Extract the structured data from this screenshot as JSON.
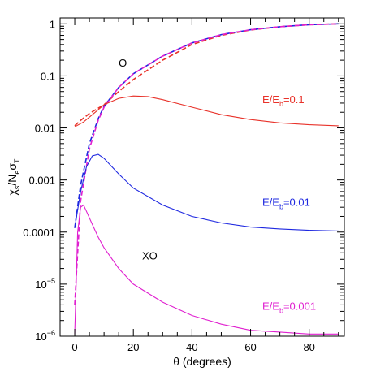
{
  "chart_data": {
    "type": "line",
    "title": "",
    "xlabel": "θ (degrees)",
    "ylabel": "χs/Neσ_T",
    "xlim": [
      -5,
      92
    ],
    "ylim": [
      1e-06,
      1.3
    ],
    "yscale": "log",
    "grid": false,
    "legend": "none",
    "x_ticks": [
      0,
      20,
      40,
      60,
      80
    ],
    "y_ticks": [
      {
        "value": 1e-06,
        "base": "10",
        "exp": "−6"
      },
      {
        "value": 1e-05,
        "base": "10",
        "exp": "−5"
      },
      {
        "value": 0.0001,
        "label": "0.0001"
      },
      {
        "value": 0.001,
        "label": "0.001"
      },
      {
        "value": 0.01,
        "label": "0.01"
      },
      {
        "value": 0.1,
        "label": "0.1"
      },
      {
        "value": 1,
        "label": "1"
      }
    ],
    "series": [
      {
        "mode": "O",
        "energy": "0.1",
        "color": "#e8322a",
        "dash": true,
        "points": [
          [
            0,
            0.011
          ],
          [
            2,
            0.014
          ],
          [
            5,
            0.019
          ],
          [
            8,
            0.024
          ],
          [
            10,
            0.028
          ],
          [
            15,
            0.05
          ],
          [
            20,
            0.085
          ],
          [
            30,
            0.2
          ],
          [
            40,
            0.4
          ],
          [
            50,
            0.6
          ],
          [
            60,
            0.76
          ],
          [
            70,
            0.88
          ],
          [
            80,
            0.96
          ],
          [
            90,
            1.0
          ]
        ]
      },
      {
        "mode": "O",
        "energy": "0.01",
        "color": "#1e28e0",
        "dash": true,
        "points": [
          [
            0,
            0.00012
          ],
          [
            2,
            0.0008
          ],
          [
            5,
            0.005
          ],
          [
            8,
            0.015
          ],
          [
            10,
            0.026
          ],
          [
            15,
            0.06
          ],
          [
            20,
            0.11
          ],
          [
            30,
            0.24
          ],
          [
            40,
            0.43
          ],
          [
            50,
            0.62
          ],
          [
            60,
            0.77
          ],
          [
            70,
            0.88
          ],
          [
            80,
            0.96
          ],
          [
            90,
            1.0
          ]
        ]
      },
      {
        "mode": "O",
        "energy": "0.001",
        "color": "#e020d0",
        "dash": true,
        "points": [
          [
            0,
            4e-06
          ],
          [
            2,
            0.0004
          ],
          [
            5,
            0.004
          ],
          [
            8,
            0.014
          ],
          [
            10,
            0.025
          ],
          [
            15,
            0.06
          ],
          [
            20,
            0.11
          ],
          [
            30,
            0.24
          ],
          [
            40,
            0.43
          ],
          [
            50,
            0.62
          ],
          [
            60,
            0.77
          ],
          [
            70,
            0.88
          ],
          [
            80,
            0.96
          ],
          [
            90,
            1.0
          ]
        ]
      },
      {
        "mode": "XO",
        "energy": "0.1",
        "color": "#e8322a",
        "dash": false,
        "points": [
          [
            0,
            0.0105
          ],
          [
            3,
            0.013
          ],
          [
            7,
            0.02
          ],
          [
            10,
            0.028
          ],
          [
            15,
            0.037
          ],
          [
            20,
            0.041
          ],
          [
            25,
            0.04
          ],
          [
            30,
            0.035
          ],
          [
            40,
            0.025
          ],
          [
            50,
            0.018
          ],
          [
            60,
            0.0145
          ],
          [
            70,
            0.0125
          ],
          [
            80,
            0.0115
          ],
          [
            90,
            0.011
          ]
        ]
      },
      {
        "mode": "XO",
        "energy": "0.01",
        "color": "#1e28e0",
        "dash": false,
        "points": [
          [
            0,
            0.00012
          ],
          [
            2,
            0.0006
          ],
          [
            4,
            0.0018
          ],
          [
            6,
            0.0029
          ],
          [
            8,
            0.0031
          ],
          [
            10,
            0.0026
          ],
          [
            15,
            0.0013
          ],
          [
            20,
            0.0007
          ],
          [
            30,
            0.00033
          ],
          [
            40,
            0.0002
          ],
          [
            50,
            0.00015
          ],
          [
            60,
            0.000125
          ],
          [
            70,
            0.000115
          ],
          [
            80,
            0.000108
          ],
          [
            90,
            0.000105
          ]
        ]
      },
      {
        "mode": "XO",
        "energy": "0.001",
        "color": "#e020d0",
        "dash": false,
        "points": [
          [
            0,
            1.1e-06
          ],
          [
            1,
            0.0001
          ],
          [
            2,
            0.0003
          ],
          [
            3,
            0.00033
          ],
          [
            4,
            0.00025
          ],
          [
            6,
            0.00014
          ],
          [
            8,
            8e-05
          ],
          [
            10,
            5e-05
          ],
          [
            15,
            2e-05
          ],
          [
            20,
            1e-05
          ],
          [
            30,
            4.5e-06
          ],
          [
            40,
            2.5e-06
          ],
          [
            50,
            1.7e-06
          ],
          [
            60,
            1.3e-06
          ],
          [
            70,
            1.2e-06
          ],
          [
            80,
            1.1e-06
          ],
          [
            90,
            1.1e-06
          ]
        ]
      }
    ],
    "annotations": [
      {
        "name": "label-o",
        "text": "O",
        "x": 15,
        "y": 0.15,
        "color": "#000000"
      },
      {
        "name": "label-xo",
        "text": "XO",
        "x": 23,
        "y": 3e-05,
        "color": "#000000"
      },
      {
        "name": "label-e-0.1",
        "prefix": "E/E",
        "sub": "b",
        "suffix": "=0.1",
        "x": 64,
        "y": 0.03,
        "color": "#e8322a"
      },
      {
        "name": "label-e-0.01",
        "prefix": "E/E",
        "sub": "b",
        "suffix": "=0.01",
        "x": 64,
        "y": 0.00032,
        "color": "#1e28e0"
      },
      {
        "name": "label-e-0.001",
        "prefix": "E/E",
        "sub": "b",
        "suffix": "=0.001",
        "x": 64,
        "y": 3.2e-06,
        "color": "#e020d0"
      }
    ]
  }
}
